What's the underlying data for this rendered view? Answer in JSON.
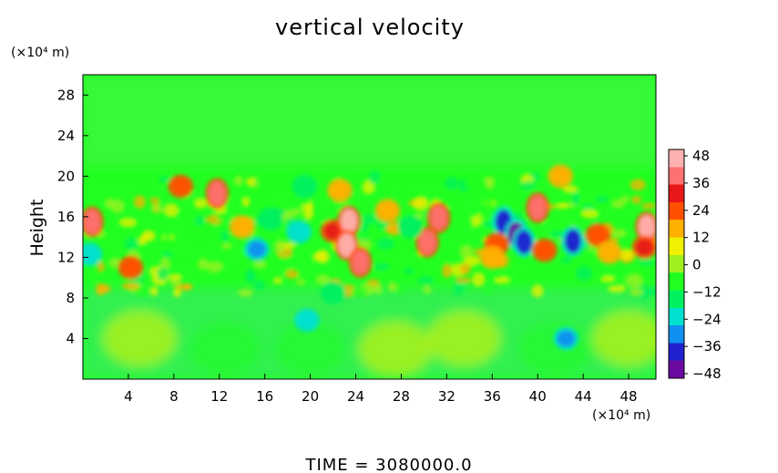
{
  "chart_data": {
    "type": "heatmap",
    "title": "vertical velocity",
    "ylabel": "Height",
    "x_unit": "(×10⁴ m)",
    "y_unit": "(×10⁴ m)",
    "xlim": [
      0,
      50.4
    ],
    "ylim": [
      0,
      30
    ],
    "x_ticks": [
      "4",
      "8",
      "12",
      "16",
      "20",
      "24",
      "28",
      "32",
      "36",
      "40",
      "44",
      "48"
    ],
    "y_ticks": [
      "4",
      "8",
      "12",
      "16",
      "20",
      "24",
      "28"
    ],
    "colorbar": {
      "range": [
        -48,
        48
      ],
      "ticks": [
        "48",
        "36",
        "24",
        "12",
        "0",
        "−12",
        "−24",
        "−36",
        "−48"
      ],
      "colors": [
        "#6a0aa0",
        "#2020d0",
        "#1090f0",
        "#00e0d0",
        "#00f060",
        "#20ff20",
        "#a0f020",
        "#f0f000",
        "#ffb000",
        "#ff5000",
        "#e81818",
        "#ff7070",
        "#ffb0b0"
      ]
    },
    "background_value": 0,
    "features": [
      {
        "x": 0.8,
        "y": 15.5,
        "value": 40
      },
      {
        "x": 0.6,
        "y": 12.3,
        "value": -24
      },
      {
        "x": 4.2,
        "y": 11.0,
        "value": 20
      },
      {
        "x": 8.6,
        "y": 19.0,
        "value": 24
      },
      {
        "x": 11.8,
        "y": 18.3,
        "value": 36
      },
      {
        "x": 15.3,
        "y": 12.8,
        "value": -30
      },
      {
        "x": 16.5,
        "y": 15.8,
        "value": -12
      },
      {
        "x": 19.0,
        "y": 14.5,
        "value": -20
      },
      {
        "x": 19.5,
        "y": 19.0,
        "value": -12
      },
      {
        "x": 22.0,
        "y": 14.6,
        "value": 30
      },
      {
        "x": 23.4,
        "y": 15.6,
        "value": 44
      },
      {
        "x": 23.2,
        "y": 13.2,
        "value": 48
      },
      {
        "x": 24.4,
        "y": 11.5,
        "value": 40
      },
      {
        "x": 22.6,
        "y": 18.6,
        "value": 18
      },
      {
        "x": 30.3,
        "y": 13.5,
        "value": 38
      },
      {
        "x": 31.3,
        "y": 15.9,
        "value": 36
      },
      {
        "x": 28.8,
        "y": 15.0,
        "value": -16
      },
      {
        "x": 37.0,
        "y": 15.5,
        "value": -40
      },
      {
        "x": 38.1,
        "y": 14.3,
        "value": -44
      },
      {
        "x": 38.8,
        "y": 13.5,
        "value": -40
      },
      {
        "x": 36.4,
        "y": 13.3,
        "value": 24
      },
      {
        "x": 40.0,
        "y": 16.9,
        "value": 40
      },
      {
        "x": 40.6,
        "y": 12.7,
        "value": 22
      },
      {
        "x": 43.1,
        "y": 13.6,
        "value": -34
      },
      {
        "x": 45.3,
        "y": 14.2,
        "value": 22
      },
      {
        "x": 49.6,
        "y": 15.0,
        "value": 44
      },
      {
        "x": 49.4,
        "y": 13.0,
        "value": 30
      },
      {
        "x": 46.3,
        "y": 12.5,
        "value": 14
      },
      {
        "x": 42.5,
        "y": 4.0,
        "value": -30
      },
      {
        "x": 19.7,
        "y": 5.8,
        "value": -22
      },
      {
        "x": 22.0,
        "y": 8.5,
        "value": -18
      },
      {
        "x": 36.0,
        "y": 12.0,
        "value": 16
      },
      {
        "x": 42.0,
        "y": 20.0,
        "value": 14
      },
      {
        "x": 5.0,
        "y": 4.0,
        "value": 6
      },
      {
        "x": 12.5,
        "y": 3.0,
        "value": -6
      },
      {
        "x": 20.0,
        "y": 3.0,
        "value": -8
      },
      {
        "x": 27.5,
        "y": 3.0,
        "value": 7
      },
      {
        "x": 33.5,
        "y": 4.0,
        "value": 6
      },
      {
        "x": 41.5,
        "y": 3.0,
        "value": -7
      },
      {
        "x": 48.0,
        "y": 4.0,
        "value": 5
      },
      {
        "x": 14.0,
        "y": 15.0,
        "value": 14
      },
      {
        "x": 26.8,
        "y": 16.6,
        "value": 12
      },
      {
        "x": 34.0,
        "y": 17.0,
        "value": -10
      }
    ]
  },
  "footer": {
    "time_label": "TIME  =  3080000.0"
  }
}
